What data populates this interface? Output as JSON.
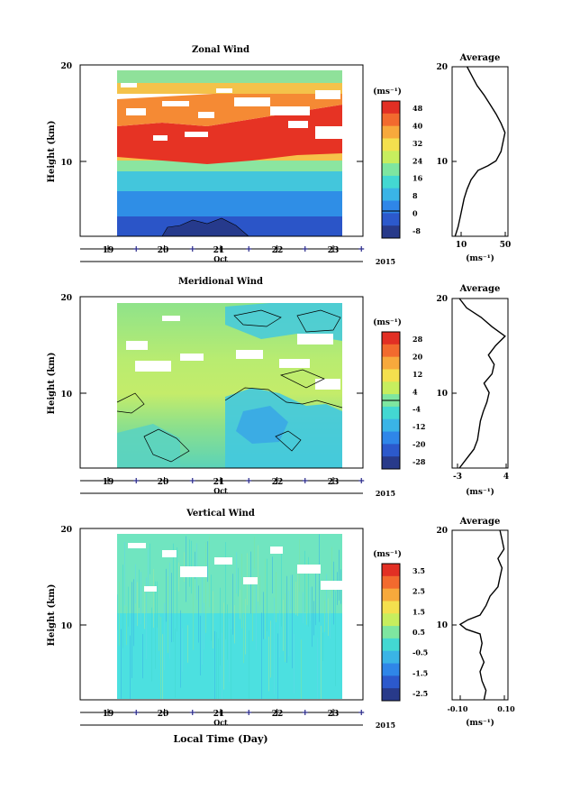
{
  "figure": {
    "xlabel": "Local Time (Day)"
  },
  "chart_data": [
    {
      "type": "heatmap",
      "title": "Zonal Wind",
      "ylabel": "Height (km)",
      "yticks": [
        "20",
        "10"
      ],
      "ylim": [
        2,
        20
      ],
      "xticks": [
        "19",
        "20",
        "21",
        "22",
        "23"
      ],
      "xlabel_sub": "Oct",
      "year": "2015",
      "x_range": [
        19.3,
        23.25
      ],
      "colorbar": {
        "unit": "(ms⁻¹)",
        "labels": [
          "48",
          "40",
          "32",
          "24",
          "16",
          "8",
          "0",
          "-8"
        ],
        "range": [
          -8,
          52
        ],
        "colors": [
          "#283a8a",
          "#2c59cc",
          "#2f86e8",
          "#3ab4e6",
          "#43d8d2",
          "#7ee6a0",
          "#c7ee5e",
          "#f4e04e",
          "#f7a93c",
          "#f26a2e",
          "#e22f24"
        ]
      },
      "profile": {
        "title": "Average",
        "xlabel": "(ms⁻¹)",
        "xticks": [
          "10",
          "50"
        ],
        "xlim": [
          2,
          58
        ],
        "yticks": [
          "20",
          "10"
        ],
        "heights": [
          2,
          3,
          4,
          5,
          6,
          7,
          8,
          9,
          9.5,
          10,
          11,
          12,
          13,
          14,
          15,
          16,
          17,
          18,
          19,
          20
        ],
        "values": [
          5,
          8,
          10,
          12,
          14,
          17,
          21,
          28,
          38,
          46,
          51,
          53,
          55,
          51,
          46,
          40,
          34,
          27,
          22,
          17
        ]
      }
    },
    {
      "type": "heatmap",
      "title": "Meridional Wind",
      "ylabel": "Height (km)",
      "yticks": [
        "20",
        "10"
      ],
      "ylim": [
        2,
        20
      ],
      "xticks": [
        "19",
        "20",
        "21",
        "22",
        "23"
      ],
      "xlabel_sub": "Oct",
      "year": "2015",
      "x_range": [
        19.3,
        23.25
      ],
      "colorbar": {
        "unit": "(ms⁻¹)",
        "labels": [
          "28",
          "20",
          "12",
          "4",
          "-4",
          "-12",
          "-20",
          "-28"
        ],
        "range": [
          -32,
          32
        ],
        "colors": [
          "#283a8a",
          "#2c59cc",
          "#2f86e8",
          "#3ab4e6",
          "#43d8d2",
          "#7ee6a0",
          "#c7ee5e",
          "#f4e04e",
          "#f7a93c",
          "#f26a2e",
          "#e22f24"
        ]
      },
      "profile": {
        "title": "Average",
        "xlabel": "(ms⁻¹)",
        "xticks": [
          "-3",
          "4"
        ],
        "xlim": [
          -3.5,
          4.2
        ],
        "yticks": [
          "20",
          "10"
        ],
        "heights": [
          2,
          3,
          4,
          5,
          6,
          7,
          8,
          9,
          10,
          11,
          12,
          13,
          14,
          15,
          16,
          17,
          18,
          19,
          20
        ],
        "values": [
          -2.5,
          -1.5,
          -0.5,
          0.0,
          0.2,
          0.4,
          0.8,
          1.3,
          1.6,
          0.9,
          2.0,
          2.3,
          1.5,
          2.5,
          3.8,
          2.0,
          0.5,
          -1.5,
          -2.5
        ]
      }
    },
    {
      "type": "heatmap",
      "title": "Vertical Wind",
      "ylabel": "Height (km)",
      "yticks": [
        "20",
        "10"
      ],
      "ylim": [
        2,
        20
      ],
      "xticks": [
        "19",
        "20",
        "21",
        "22",
        "23"
      ],
      "xlabel_sub": "Oct",
      "year": "2015",
      "x_range": [
        19.3,
        23.25
      ],
      "colorbar": {
        "unit": "(ms⁻¹)",
        "labels": [
          "3.5",
          "2.5",
          "1.5",
          "0.5",
          "-0.5",
          "-1.5",
          "-2.5"
        ],
        "range": [
          -3,
          4
        ],
        "colors": [
          "#283a8a",
          "#2c59cc",
          "#2f86e8",
          "#3ab4e6",
          "#43d8d2",
          "#7ee6a0",
          "#c7ee5e",
          "#f4e04e",
          "#f7a93c",
          "#f26a2e",
          "#e22f24"
        ]
      },
      "profile": {
        "title": "Average",
        "xlabel": "(ms⁻¹)",
        "xticks": [
          "-0.10",
          "0.10"
        ],
        "xlim": [
          -0.14,
          0.14
        ],
        "yticks": [
          "20",
          "10"
        ],
        "heights": [
          2,
          3,
          4,
          5,
          6,
          7,
          8,
          9,
          9.5,
          10,
          10.5,
          11,
          12,
          13,
          14,
          15,
          16,
          17,
          18,
          19,
          20
        ],
        "values": [
          0.02,
          0.03,
          0.01,
          0.0,
          0.02,
          0.0,
          0.01,
          0.0,
          -0.07,
          -0.1,
          -0.06,
          0.0,
          0.03,
          0.05,
          0.09,
          0.1,
          0.11,
          0.09,
          0.12,
          0.11,
          0.1
        ]
      }
    }
  ]
}
